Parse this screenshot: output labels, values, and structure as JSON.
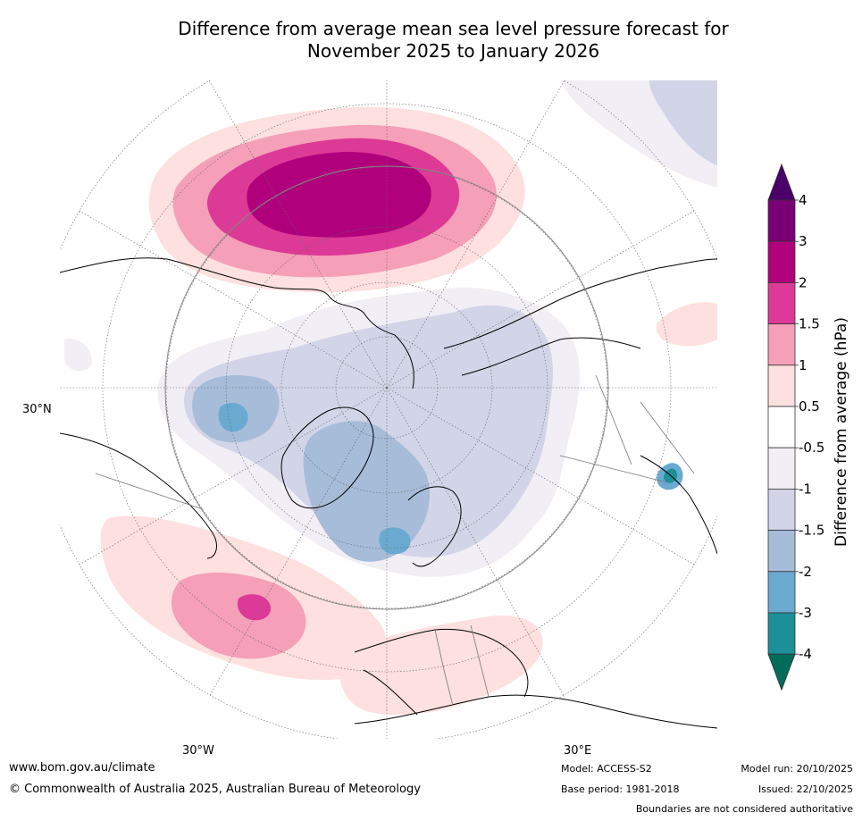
{
  "title": {
    "line1": "Difference from average mean sea level pressure forecast for",
    "line2": "November 2025 to January 2026"
  },
  "map": {
    "lat_label": "30°N",
    "lon_labels": {
      "west": "30°W",
      "east": "30°E"
    }
  },
  "legend": {
    "axis_label": "Difference from average (hPa)",
    "ticks": [
      "4",
      "3",
      "2",
      "1.5",
      "1",
      "0.5",
      "-0.5",
      "-1",
      "-1.5",
      "-2",
      "-3",
      "-4"
    ],
    "bins": [
      {
        "range": "above 4",
        "color": "#4b0069"
      },
      {
        "range": "3 to 4",
        "color": "#7a0076"
      },
      {
        "range": "2 to 3",
        "color": "#b0007c"
      },
      {
        "range": "1.5 to 2",
        "color": "#dc3a96"
      },
      {
        "range": "1 to 1.5",
        "color": "#f59fb8"
      },
      {
        "range": "0.5 to 1",
        "color": "#fde0df"
      },
      {
        "range": "-0.5 to 0.5",
        "color": "#ffffff"
      },
      {
        "range": "-1 to -0.5",
        "color": "#f1eef5"
      },
      {
        "range": "-1.5 to -1",
        "color": "#d2d5e7"
      },
      {
        "range": "-2 to -1.5",
        "color": "#a6bcd9"
      },
      {
        "range": "-3 to -2",
        "color": "#6aaad0"
      },
      {
        "range": "-4 to -3",
        "color": "#1c9099"
      },
      {
        "range": "below -4",
        "color": "#016c59"
      }
    ]
  },
  "footer": {
    "website": "www.bom.gov.au/climate",
    "copyright": "© Commonwealth of Australia 2025, Australian Bureau of Meteorology",
    "model": "Model: ACCESS-S2",
    "base_period": "Base period: 1981-2018",
    "model_run": "Model run: 20/10/2025",
    "issued": "Issued: 22/10/2025",
    "disclaimer": "Boundaries are not considered authoritative"
  }
}
